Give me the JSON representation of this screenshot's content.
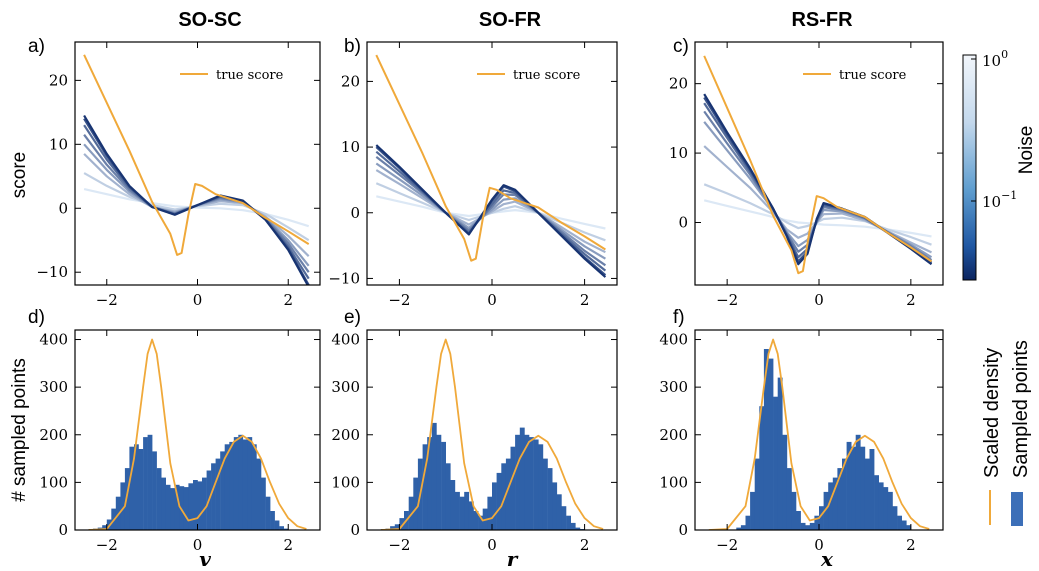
{
  "colors": {
    "true_score": "#f0a93a",
    "density": "#f0a93a",
    "hist": "#2f61a8",
    "noise_low": "#0d2a6b",
    "noise_high": "#dce8f5"
  },
  "chart_data": [
    {
      "type": "line",
      "panel": "a)",
      "column_title": "SO-SC",
      "xlabel": "",
      "ylabel": "score",
      "xlim": [
        -2.7,
        2.7
      ],
      "ylim": [
        -12,
        26
      ],
      "xticks": [
        -2,
        0,
        2
      ],
      "yticks": [
        -10,
        0,
        10,
        20
      ],
      "legend": "true score",
      "true_score": {
        "x": [
          -2.5,
          -1.5,
          -1.0,
          -0.6,
          -0.45,
          -0.35,
          -0.2,
          -0.05,
          0.1,
          0.4,
          0.7,
          1.0,
          1.5,
          2.0,
          2.45
        ],
        "y": [
          24,
          9,
          1,
          -4,
          -7.3,
          -7,
          -1,
          3.8,
          3.5,
          2.2,
          1.5,
          0.8,
          -1.5,
          -3.6,
          -5.6
        ]
      },
      "noise_curves": {
        "x": [
          -2.5,
          -2.0,
          -1.5,
          -1.0,
          -0.5,
          0.0,
          0.5,
          1.0,
          1.5,
          2.0,
          2.45
        ],
        "curves": [
          {
            "noise": 0.03,
            "y": [
              14.5,
              8.5,
              3.5,
              0.2,
              -1.0,
              0.5,
              2.0,
              1.2,
              -1.8,
              -6.5,
              -12.3
            ]
          },
          {
            "noise": 0.05,
            "y": [
              14.0,
              8.2,
              3.4,
              0.2,
              -1.0,
              0.5,
              1.9,
              1.1,
              -1.8,
              -6.3,
              -12.0
            ]
          },
          {
            "noise": 0.08,
            "y": [
              13.0,
              7.6,
              3.2,
              0.2,
              -0.9,
              0.5,
              1.8,
              1.1,
              -1.7,
              -6.0,
              -11.0
            ]
          },
          {
            "noise": 0.12,
            "y": [
              11.5,
              6.8,
              2.9,
              0.2,
              -0.8,
              0.5,
              1.6,
              1.0,
              -1.6,
              -5.5,
              -10.0
            ]
          },
          {
            "noise": 0.2,
            "y": [
              10.0,
              6.0,
              2.6,
              0.2,
              -0.7,
              0.5,
              1.4,
              0.9,
              -1.5,
              -5.0,
              -9.0
            ]
          },
          {
            "noise": 0.3,
            "y": [
              8.5,
              5.0,
              2.2,
              0.2,
              -0.5,
              0.4,
              1.1,
              0.8,
              -1.3,
              -4.3,
              -7.5
            ]
          },
          {
            "noise": 0.5,
            "y": [
              5.5,
              3.5,
              1.8,
              0.5,
              -0.2,
              0.3,
              0.7,
              0.5,
              -0.9,
              -3.0,
              -5.0
            ]
          },
          {
            "noise": 0.8,
            "y": [
              3.0,
              2.2,
              1.4,
              0.8,
              0.3,
              0.1,
              0.0,
              -0.3,
              -0.9,
              -1.8,
              -2.8
            ]
          }
        ]
      }
    },
    {
      "type": "line",
      "panel": "b)",
      "column_title": "SO-FR",
      "xlabel": "",
      "ylabel": "",
      "xlim": [
        -2.7,
        2.7
      ],
      "ylim": [
        -11,
        26
      ],
      "xticks": [
        -2,
        0,
        2
      ],
      "yticks": [
        -10,
        0,
        10,
        20
      ],
      "legend": "true score",
      "true_score": {
        "x": [
          -2.5,
          -1.5,
          -1.0,
          -0.6,
          -0.45,
          -0.35,
          -0.2,
          -0.05,
          0.1,
          0.4,
          0.7,
          1.0,
          1.5,
          2.0,
          2.45
        ],
        "y": [
          24,
          9,
          1,
          -4,
          -7.3,
          -7,
          -1,
          3.8,
          3.5,
          2.2,
          1.5,
          0.8,
          -1.5,
          -3.6,
          -5.6
        ]
      },
      "noise_curves": {
        "x": [
          -2.5,
          -2.0,
          -1.5,
          -1.0,
          -0.5,
          0.0,
          0.25,
          0.5,
          1.0,
          1.5,
          2.0,
          2.45
        ],
        "curves": [
          {
            "noise": 0.03,
            "y": [
              10.3,
              7.0,
              3.5,
              0.0,
              -3.3,
              2.0,
              4.2,
              3.5,
              0.0,
              -3.5,
              -7.0,
              -9.8
            ]
          },
          {
            "noise": 0.05,
            "y": [
              10.0,
              6.8,
              3.4,
              0.0,
              -3.2,
              1.8,
              4.0,
              3.3,
              0.0,
              -3.4,
              -6.8,
              -9.5
            ]
          },
          {
            "noise": 0.08,
            "y": [
              9.3,
              6.3,
              3.2,
              0.0,
              -3.0,
              1.3,
              3.4,
              3.0,
              0.0,
              -3.2,
              -6.3,
              -8.8
            ]
          },
          {
            "noise": 0.12,
            "y": [
              8.5,
              5.8,
              3.0,
              0.0,
              -2.7,
              0.9,
              2.8,
              2.7,
              0.0,
              -2.9,
              -5.8,
              -8.0
            ]
          },
          {
            "noise": 0.2,
            "y": [
              7.5,
              5.1,
              2.6,
              0.0,
              -2.3,
              0.5,
              2.0,
              2.2,
              0.0,
              -2.6,
              -5.1,
              -7.0
            ]
          },
          {
            "noise": 0.3,
            "y": [
              6.5,
              4.4,
              2.2,
              0.0,
              -1.8,
              0.2,
              1.3,
              1.7,
              0.0,
              -2.2,
              -4.4,
              -6.0
            ]
          },
          {
            "noise": 0.5,
            "y": [
              4.5,
              3.0,
              1.5,
              0.0,
              -1.1,
              0.0,
              0.6,
              1.0,
              0.0,
              -1.5,
              -3.0,
              -4.2
            ]
          },
          {
            "noise": 0.8,
            "y": [
              2.5,
              1.7,
              0.9,
              0.0,
              -0.5,
              0.0,
              0.2,
              0.4,
              0.0,
              -0.9,
              -1.7,
              -2.4
            ]
          }
        ]
      }
    },
    {
      "type": "line",
      "panel": "c)",
      "column_title": "RS-FR",
      "xlabel": "",
      "ylabel": "",
      "xlim": [
        -2.7,
        2.7
      ],
      "ylim": [
        -9,
        26
      ],
      "xticks": [
        -2,
        0,
        2
      ],
      "yticks": [
        0,
        10,
        20
      ],
      "legend": "true score",
      "colorbar": {
        "label": "Noise",
        "ticks": [
          "10^0",
          "10^-1"
        ]
      },
      "true_score": {
        "x": [
          -2.5,
          -1.5,
          -1.0,
          -0.6,
          -0.45,
          -0.35,
          -0.2,
          -0.05,
          0.1,
          0.4,
          0.7,
          1.0,
          1.5,
          2.0,
          2.45
        ],
        "y": [
          24,
          9,
          1,
          -4,
          -7.3,
          -7,
          -1,
          3.8,
          3.5,
          2.2,
          1.5,
          0.8,
          -1.5,
          -3.6,
          -5.6
        ]
      },
      "noise_curves": {
        "x": [
          -2.5,
          -2.0,
          -1.5,
          -1.0,
          -0.7,
          -0.45,
          -0.25,
          -0.05,
          0.1,
          0.5,
          1.0,
          1.5,
          2.0,
          2.45
        ],
        "curves": [
          {
            "noise": 0.03,
            "y": [
              18.5,
              13.0,
              7.8,
              2.0,
              -2.0,
              -6.0,
              -4.5,
              0.5,
              2.8,
              2.0,
              0.8,
              -1.5,
              -3.8,
              -6.0
            ]
          },
          {
            "noise": 0.05,
            "y": [
              18.0,
              12.7,
              7.6,
              2.0,
              -1.9,
              -5.6,
              -4.2,
              0.4,
              2.7,
              2.0,
              0.8,
              -1.5,
              -3.7,
              -5.9
            ]
          },
          {
            "noise": 0.08,
            "y": [
              17.2,
              12.2,
              7.3,
              2.0,
              -1.8,
              -5.0,
              -3.8,
              0.3,
              2.5,
              1.9,
              0.7,
              -1.5,
              -3.6,
              -5.7
            ]
          },
          {
            "noise": 0.12,
            "y": [
              16.0,
              11.4,
              6.9,
              1.9,
              -1.6,
              -4.2,
              -3.2,
              0.1,
              2.2,
              1.8,
              0.6,
              -1.4,
              -3.4,
              -5.4
            ]
          },
          {
            "noise": 0.2,
            "y": [
              14.5,
              10.4,
              6.3,
              1.8,
              -1.4,
              -3.4,
              -2.5,
              0.0,
              1.8,
              1.6,
              0.5,
              -1.4,
              -3.2,
              -5.0
            ]
          },
          {
            "noise": 0.3,
            "y": [
              11.0,
              8.0,
              5.0,
              1.5,
              -1.0,
              -2.2,
              -1.6,
              0.0,
              1.2,
              1.3,
              0.3,
              -1.3,
              -2.9,
              -4.3
            ]
          },
          {
            "noise": 0.5,
            "y": [
              5.5,
              4.2,
              2.8,
              1.2,
              0.0,
              -0.8,
              -0.5,
              0.0,
              0.5,
              0.7,
              0.2,
              -1.0,
              -2.1,
              -3.2
            ]
          },
          {
            "noise": 0.8,
            "y": [
              3.2,
              2.4,
              1.6,
              0.8,
              0.3,
              0.0,
              -0.1,
              -0.2,
              -0.3,
              -0.4,
              -0.6,
              -1.0,
              -1.5,
              -2.0
            ]
          }
        ]
      }
    },
    {
      "type": "bar",
      "panel": "d)",
      "xlabel": "v",
      "ylabel": "# sampled points",
      "xlim": [
        -2.7,
        2.7
      ],
      "ylim": [
        0,
        420
      ],
      "xticks": [
        -2,
        0,
        2
      ],
      "yticks": [
        0,
        100,
        200,
        300,
        400
      ],
      "bins": {
        "start": -2.4,
        "width": 0.1,
        "counts": [
          2,
          3,
          5,
          10,
          22,
          45,
          70,
          100,
          130,
          175,
          180,
          170,
          195,
          200,
          165,
          130,
          110,
          95,
          88,
          95,
          92,
          90,
          98,
          105,
          102,
          110,
          125,
          140,
          150,
          165,
          180,
          185,
          195,
          200,
          190,
          195,
          180,
          150,
          110,
          70,
          40,
          20,
          8,
          3
        ]
      },
      "density": {
        "x": [
          -2.4,
          -2.0,
          -1.6,
          -1.4,
          -1.2,
          -1.1,
          -1.0,
          -0.9,
          -0.8,
          -0.6,
          -0.4,
          -0.2,
          0.0,
          0.2,
          0.4,
          0.6,
          0.8,
          1.0,
          1.2,
          1.4,
          1.6,
          1.8,
          2.0,
          2.2,
          2.4
        ],
        "y": [
          0,
          2,
          50,
          150,
          300,
          370,
          400,
          370,
          300,
          140,
          50,
          20,
          25,
          50,
          100,
          150,
          185,
          198,
          185,
          150,
          100,
          55,
          25,
          8,
          2
        ]
      }
    },
    {
      "type": "bar",
      "panel": "e)",
      "xlabel": "r",
      "ylabel": "",
      "xlim": [
        -2.7,
        2.7
      ],
      "ylim": [
        0,
        420
      ],
      "xticks": [
        -2,
        0,
        2
      ],
      "yticks": [
        0,
        100,
        200,
        300,
        400
      ],
      "bins": {
        "start": -2.4,
        "width": 0.1,
        "counts": [
          2,
          3,
          8,
          12,
          25,
          40,
          70,
          110,
          150,
          180,
          195,
          225,
          200,
          185,
          140,
          105,
          80,
          70,
          80,
          60,
          40,
          30,
          45,
          70,
          100,
          120,
          140,
          150,
          175,
          200,
          215,
          200,
          195,
          190,
          180,
          150,
          130,
          100,
          75,
          50,
          30,
          15,
          5,
          2
        ]
      },
      "density": {
        "x": [
          -2.4,
          -2.0,
          -1.6,
          -1.4,
          -1.2,
          -1.1,
          -1.0,
          -0.9,
          -0.8,
          -0.6,
          -0.4,
          -0.2,
          0.0,
          0.2,
          0.4,
          0.6,
          0.8,
          1.0,
          1.2,
          1.4,
          1.6,
          1.8,
          2.0,
          2.2,
          2.4
        ],
        "y": [
          0,
          2,
          50,
          150,
          300,
          370,
          400,
          370,
          300,
          140,
          50,
          20,
          25,
          50,
          100,
          150,
          185,
          198,
          185,
          150,
          100,
          55,
          25,
          8,
          2
        ]
      }
    },
    {
      "type": "bar",
      "panel": "f)",
      "xlabel": "x",
      "ylabel": "",
      "xlim": [
        -2.7,
        2.7
      ],
      "ylim": [
        0,
        420
      ],
      "xticks": [
        -2,
        0,
        2
      ],
      "yticks": [
        0,
        100,
        200,
        300,
        400
      ],
      "bins": {
        "start": -1.8,
        "width": 0.1,
        "counts": [
          5,
          10,
          30,
          80,
          150,
          260,
          380,
          360,
          280,
          320,
          200,
          130,
          80,
          40,
          15,
          10,
          15,
          30,
          50,
          80,
          100,
          110,
          130,
          150,
          185,
          175,
          200,
          175,
          150,
          170,
          115,
          100,
          90,
          80,
          50,
          30,
          20,
          10
        ]
      },
      "density": {
        "x": [
          -2.4,
          -2.0,
          -1.6,
          -1.4,
          -1.2,
          -1.1,
          -1.0,
          -0.9,
          -0.8,
          -0.6,
          -0.4,
          -0.2,
          0.0,
          0.2,
          0.4,
          0.6,
          0.8,
          1.0,
          1.2,
          1.4,
          1.6,
          1.8,
          2.0,
          2.2,
          2.4
        ],
        "y": [
          0,
          2,
          50,
          150,
          300,
          370,
          400,
          370,
          300,
          140,
          50,
          20,
          25,
          50,
          100,
          150,
          185,
          198,
          185,
          150,
          100,
          55,
          25,
          8,
          2
        ]
      }
    }
  ],
  "side_legend": {
    "density": "Scaled density",
    "sampled": "Sampled points"
  }
}
